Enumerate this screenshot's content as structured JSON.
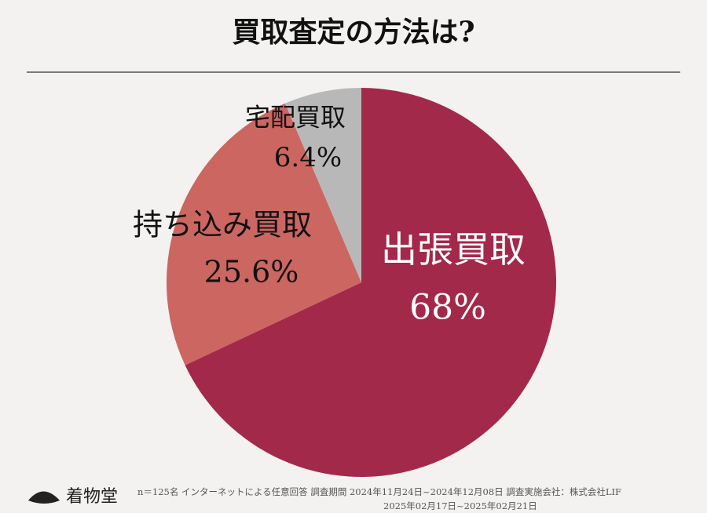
{
  "chart_data": {
    "type": "pie",
    "title": "買取査定の方法は?",
    "categories": [
      "出張買取",
      "持ち込み買取",
      "宅配買取"
    ],
    "values": [
      68,
      25.6,
      6.4
    ],
    "value_labels": [
      "68%",
      "25.6%",
      "6.4%"
    ],
    "colors": [
      "#a3294a",
      "#cc6660",
      "#b8b8b8"
    ],
    "footnote": [
      "n＝125名 インターネットによる任意回答 調査期間 2024年11月24日~2024年12月08日 調査実施会社：株式会社LIF",
      "2025年02月17日~2025年02月21日"
    ],
    "brand": "着物堂"
  }
}
